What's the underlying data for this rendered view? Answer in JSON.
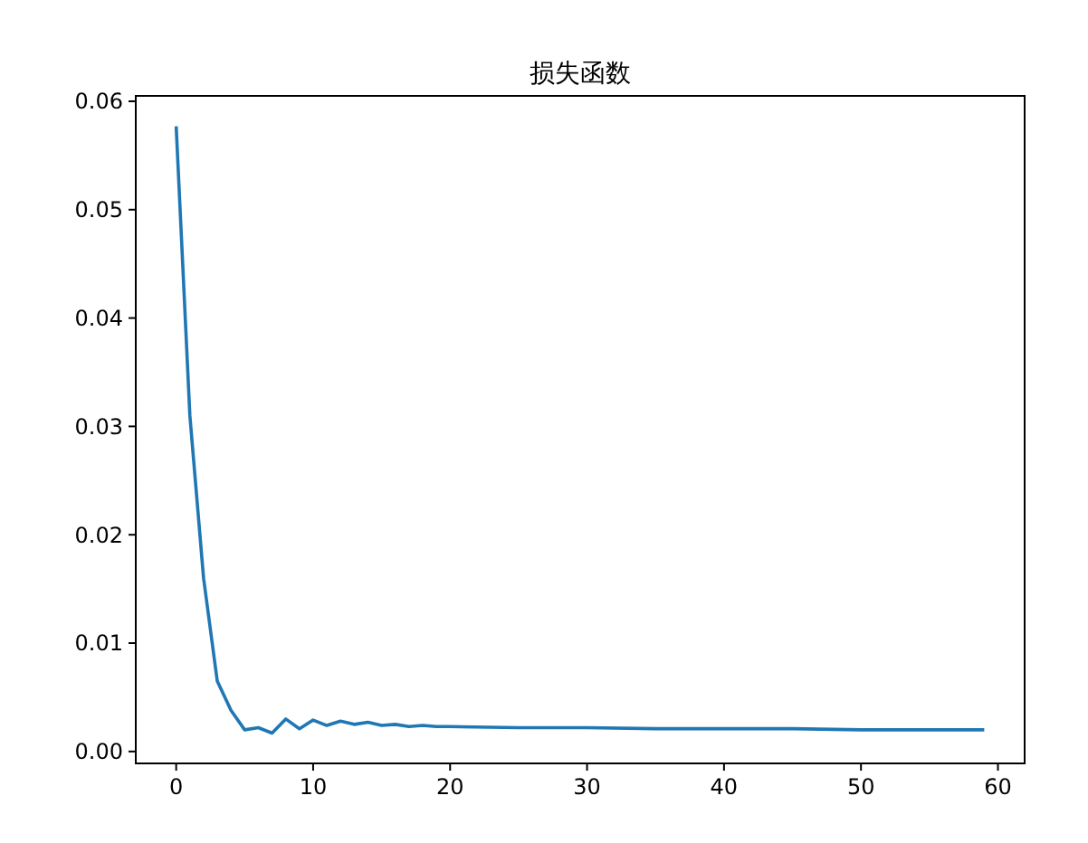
{
  "chart_data": {
    "type": "line",
    "title": "损失函数",
    "x": [
      0,
      1,
      2,
      3,
      4,
      5,
      6,
      7,
      8,
      9,
      10,
      11,
      12,
      13,
      14,
      15,
      16,
      17,
      18,
      19,
      20,
      25,
      30,
      35,
      40,
      45,
      50,
      55,
      59
    ],
    "series": [
      {
        "color": "#1f77b4",
        "values": [
          0.0577,
          0.031,
          0.016,
          0.0065,
          0.0038,
          0.002,
          0.0022,
          0.0017,
          0.003,
          0.0021,
          0.0029,
          0.0024,
          0.0028,
          0.0025,
          0.0027,
          0.0024,
          0.0025,
          0.0023,
          0.0024,
          0.0023,
          0.0023,
          0.0022,
          0.0022,
          0.0021,
          0.0021,
          0.0021,
          0.002,
          0.002,
          0.002
        ]
      }
    ],
    "xlim": [
      -2.95,
      61.95
    ],
    "xticks": [
      0,
      10,
      20,
      30,
      40,
      50,
      60
    ],
    "ylim": [
      -0.0011,
      0.0605
    ],
    "yticks": [
      {
        "value": 0,
        "label": "0.00"
      },
      {
        "value": 0.01,
        "label": "0.01"
      },
      {
        "value": 0.02,
        "label": "0.02"
      },
      {
        "value": 0.03,
        "label": "0.03"
      },
      {
        "value": 0.04,
        "label": "0.04"
      },
      {
        "value": 0.05,
        "label": "0.05"
      },
      {
        "value": 0.06,
        "label": "0.06"
      }
    ],
    "grid": false
  }
}
